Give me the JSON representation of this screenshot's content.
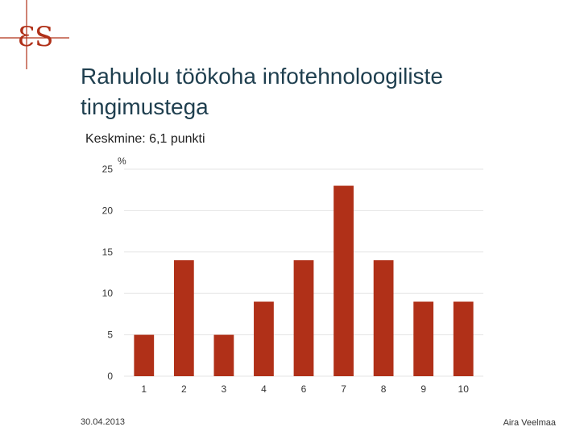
{
  "header": {
    "logo_alt": "ES"
  },
  "slide": {
    "title": "Rahulolu töökoha infotehnoloogiliste tingimustega",
    "subtitle": "Keskmine: 6,1 punkti"
  },
  "footer": {
    "date": "30.04.2013",
    "author": "Aira Veelmaa"
  },
  "colors": {
    "bar": "#b03018",
    "title": "#1f3f4f",
    "logo": "#b03018",
    "grid": "#e6e6e6"
  },
  "chart_data": {
    "type": "bar",
    "categories": [
      "1",
      "2",
      "3",
      "4",
      "6",
      "7",
      "8",
      "9",
      "10"
    ],
    "values": [
      5,
      14,
      5,
      9,
      14,
      23,
      14,
      9,
      9
    ],
    "ylabel": "%",
    "ylim": [
      0,
      25
    ],
    "yticks": [
      0,
      5,
      10,
      15,
      20,
      25
    ],
    "grid": true,
    "legend": "none"
  }
}
